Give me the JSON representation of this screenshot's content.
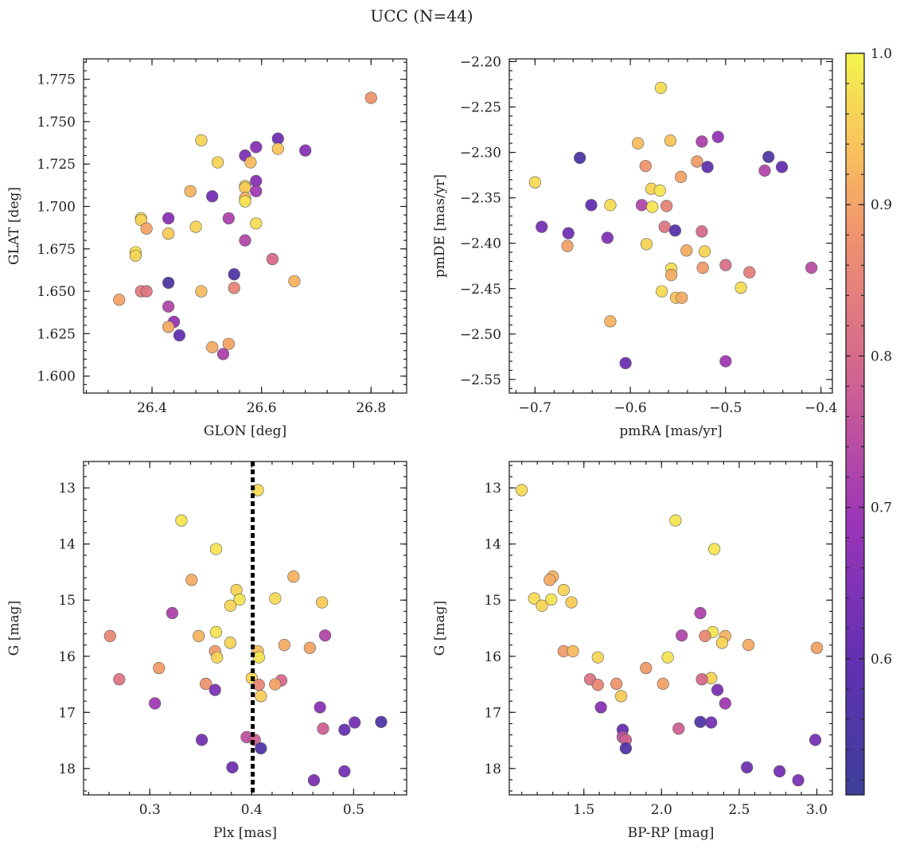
{
  "title": "UCC (N=44)",
  "colorbar": {
    "ticks": [
      0.6,
      0.7,
      0.8,
      0.9,
      1.0
    ],
    "tick_labels": [
      "0.6",
      "0.7",
      "0.8",
      "0.9",
      "1.0"
    ],
    "range": [
      0.51,
      1.0
    ],
    "colormap": "plasma"
  },
  "chart_data": [
    {
      "type": "scatter",
      "id": "glon-glat",
      "xlabel": "GLON [deg]",
      "ylabel": "GLAT [deg]",
      "xlim": [
        26.275,
        26.865
      ],
      "ylim": [
        1.59,
        1.787
      ],
      "x_invert": false,
      "y_invert": false,
      "grid": false,
      "xticks": [
        26.4,
        26.6,
        26.8
      ],
      "xtick_labels": [
        "26.4",
        "26.6",
        "26.8"
      ],
      "yticks": [
        1.6,
        1.625,
        1.65,
        1.675,
        1.7,
        1.725,
        1.75,
        1.775
      ],
      "ytick_labels": [
        "1.600",
        "1.625",
        "1.650",
        "1.675",
        "1.700",
        "1.725",
        "1.750",
        "1.775"
      ],
      "vline": null,
      "points": [
        {
          "x": 26.8,
          "y": 1.764,
          "c": 0.88
        },
        {
          "x": 26.49,
          "y": 1.739,
          "c": 0.96
        },
        {
          "x": 26.63,
          "y": 1.74,
          "c": 0.62
        },
        {
          "x": 26.59,
          "y": 1.735,
          "c": 0.66
        },
        {
          "x": 26.63,
          "y": 1.734,
          "c": 0.94
        },
        {
          "x": 26.68,
          "y": 1.733,
          "c": 0.66
        },
        {
          "x": 26.57,
          "y": 1.73,
          "c": 0.64
        },
        {
          "x": 26.52,
          "y": 1.726,
          "c": 0.96
        },
        {
          "x": 26.58,
          "y": 1.726,
          "c": 0.93
        },
        {
          "x": 26.59,
          "y": 1.715,
          "c": 0.66
        },
        {
          "x": 26.57,
          "y": 1.712,
          "c": 0.97
        },
        {
          "x": 26.57,
          "y": 1.711,
          "c": 0.95
        },
        {
          "x": 26.47,
          "y": 1.709,
          "c": 0.92
        },
        {
          "x": 26.59,
          "y": 1.709,
          "c": 0.7
        },
        {
          "x": 26.51,
          "y": 1.706,
          "c": 0.63
        },
        {
          "x": 26.57,
          "y": 1.705,
          "c": 0.92
        },
        {
          "x": 26.57,
          "y": 1.703,
          "c": 0.98
        },
        {
          "x": 26.38,
          "y": 1.693,
          "c": 0.98
        },
        {
          "x": 26.38,
          "y": 1.692,
          "c": 0.96
        },
        {
          "x": 26.43,
          "y": 1.693,
          "c": 0.66
        },
        {
          "x": 26.54,
          "y": 1.693,
          "c": 0.72
        },
        {
          "x": 26.59,
          "y": 1.69,
          "c": 0.97
        },
        {
          "x": 26.48,
          "y": 1.688,
          "c": 0.96
        },
        {
          "x": 26.39,
          "y": 1.687,
          "c": 0.9
        },
        {
          "x": 26.43,
          "y": 1.684,
          "c": 0.95
        },
        {
          "x": 26.57,
          "y": 1.68,
          "c": 0.73
        },
        {
          "x": 26.37,
          "y": 1.673,
          "c": 0.98
        },
        {
          "x": 26.37,
          "y": 1.671,
          "c": 0.96
        },
        {
          "x": 26.62,
          "y": 1.669,
          "c": 0.8
        },
        {
          "x": 26.55,
          "y": 1.66,
          "c": 0.56
        },
        {
          "x": 26.66,
          "y": 1.656,
          "c": 0.92
        },
        {
          "x": 26.43,
          "y": 1.655,
          "c": 0.55
        },
        {
          "x": 26.55,
          "y": 1.652,
          "c": 0.85
        },
        {
          "x": 26.38,
          "y": 1.65,
          "c": 0.84
        },
        {
          "x": 26.39,
          "y": 1.65,
          "c": 0.82
        },
        {
          "x": 26.49,
          "y": 1.65,
          "c": 0.93
        },
        {
          "x": 26.34,
          "y": 1.645,
          "c": 0.9
        },
        {
          "x": 26.43,
          "y": 1.641,
          "c": 0.73
        },
        {
          "x": 26.44,
          "y": 1.632,
          "c": 0.68
        },
        {
          "x": 26.43,
          "y": 1.629,
          "c": 0.91
        },
        {
          "x": 26.45,
          "y": 1.624,
          "c": 0.6
        },
        {
          "x": 26.54,
          "y": 1.619,
          "c": 0.9
        },
        {
          "x": 26.51,
          "y": 1.617,
          "c": 0.91
        },
        {
          "x": 26.53,
          "y": 1.613,
          "c": 0.72
        }
      ]
    },
    {
      "type": "scatter",
      "id": "pmra-pmde",
      "xlabel": "pmRA [mas/yr]",
      "ylabel": "pmDE [mas/yr]",
      "xlim": [
        -0.727,
        -0.388
      ],
      "ylim": [
        -2.565,
        -2.197
      ],
      "x_invert": false,
      "y_invert": false,
      "grid": false,
      "xticks": [
        -0.7,
        -0.6,
        -0.5,
        -0.4
      ],
      "xtick_labels": [
        "−0.7",
        "−0.6",
        "−0.5",
        "−0.4"
      ],
      "yticks": [
        -2.55,
        -2.5,
        -2.45,
        -2.4,
        -2.35,
        -2.3,
        -2.25,
        -2.2
      ],
      "ytick_labels": [
        "−2.55",
        "−2.50",
        "−2.45",
        "−2.40",
        "−2.35",
        "−2.30",
        "−2.25",
        "−2.20"
      ],
      "vline": null,
      "points": [
        {
          "x": -0.568,
          "y": -2.229,
          "c": 0.97
        },
        {
          "x": -0.592,
          "y": -2.29,
          "c": 0.93
        },
        {
          "x": -0.558,
          "y": -2.287,
          "c": 0.94
        },
        {
          "x": -0.525,
          "y": -2.288,
          "c": 0.72
        },
        {
          "x": -0.508,
          "y": -2.283,
          "c": 0.68
        },
        {
          "x": -0.653,
          "y": -2.306,
          "c": 0.55
        },
        {
          "x": -0.455,
          "y": -2.305,
          "c": 0.55
        },
        {
          "x": -0.53,
          "y": -2.31,
          "c": 0.89
        },
        {
          "x": -0.584,
          "y": -2.315,
          "c": 0.88
        },
        {
          "x": -0.519,
          "y": -2.316,
          "c": 0.6
        },
        {
          "x": -0.441,
          "y": -2.316,
          "c": 0.6
        },
        {
          "x": -0.459,
          "y": -2.32,
          "c": 0.73
        },
        {
          "x": -0.547,
          "y": -2.327,
          "c": 0.9
        },
        {
          "x": -0.7,
          "y": -2.333,
          "c": 0.97
        },
        {
          "x": -0.578,
          "y": -2.34,
          "c": 0.96
        },
        {
          "x": -0.569,
          "y": -2.342,
          "c": 0.98
        },
        {
          "x": -0.641,
          "y": -2.358,
          "c": 0.6
        },
        {
          "x": -0.621,
          "y": -2.358,
          "c": 0.97
        },
        {
          "x": -0.588,
          "y": -2.358,
          "c": 0.73
        },
        {
          "x": -0.577,
          "y": -2.36,
          "c": 0.98
        },
        {
          "x": -0.562,
          "y": -2.359,
          "c": 0.85
        },
        {
          "x": -0.693,
          "y": -2.382,
          "c": 0.63
        },
        {
          "x": -0.564,
          "y": -2.382,
          "c": 0.82
        },
        {
          "x": -0.553,
          "y": -2.386,
          "c": 0.58
        },
        {
          "x": -0.525,
          "y": -2.387,
          "c": 0.8
        },
        {
          "x": -0.665,
          "y": -2.389,
          "c": 0.62
        },
        {
          "x": -0.624,
          "y": -2.394,
          "c": 0.65
        },
        {
          "x": -0.583,
          "y": -2.401,
          "c": 0.96
        },
        {
          "x": -0.666,
          "y": -2.403,
          "c": 0.9
        },
        {
          "x": -0.541,
          "y": -2.408,
          "c": 0.91
        },
        {
          "x": -0.522,
          "y": -2.409,
          "c": 0.96
        },
        {
          "x": -0.5,
          "y": -2.424,
          "c": 0.81
        },
        {
          "x": -0.41,
          "y": -2.427,
          "c": 0.74
        },
        {
          "x": -0.557,
          "y": -2.428,
          "c": 0.97
        },
        {
          "x": -0.524,
          "y": -2.427,
          "c": 0.89
        },
        {
          "x": -0.475,
          "y": -2.432,
          "c": 0.84
        },
        {
          "x": -0.557,
          "y": -2.435,
          "c": 0.91
        },
        {
          "x": -0.484,
          "y": -2.449,
          "c": 0.97
        },
        {
          "x": -0.567,
          "y": -2.453,
          "c": 0.97
        },
        {
          "x": -0.552,
          "y": -2.46,
          "c": 0.94
        },
        {
          "x": -0.546,
          "y": -2.46,
          "c": 0.91
        },
        {
          "x": -0.621,
          "y": -2.486,
          "c": 0.92
        },
        {
          "x": -0.5,
          "y": -2.53,
          "c": 0.7
        },
        {
          "x": -0.605,
          "y": -2.532,
          "c": 0.62
        }
      ]
    },
    {
      "type": "scatter",
      "id": "plx-g",
      "xlabel": "Plx [mas]",
      "ylabel": "G [mag]",
      "xlim": [
        0.235,
        0.552
      ],
      "ylim": [
        18.47,
        12.53
      ],
      "x_invert": false,
      "y_invert": true,
      "grid": false,
      "xticks": [
        0.3,
        0.4,
        0.5
      ],
      "xtick_labels": [
        "0.3",
        "0.4",
        "0.5"
      ],
      "yticks": [
        13,
        14,
        15,
        16,
        17,
        18
      ],
      "ytick_labels": [
        "13",
        "14",
        "15",
        "16",
        "17",
        "18"
      ],
      "vline": 0.401,
      "points": [
        {
          "x": 0.406,
          "y": 13.04,
          "c": 0.97
        },
        {
          "x": 0.331,
          "y": 13.58,
          "c": 0.98
        },
        {
          "x": 0.365,
          "y": 14.09,
          "c": 0.98
        },
        {
          "x": 0.441,
          "y": 14.58,
          "c": 0.92
        },
        {
          "x": 0.341,
          "y": 14.64,
          "c": 0.91
        },
        {
          "x": 0.385,
          "y": 14.82,
          "c": 0.96
        },
        {
          "x": 0.423,
          "y": 14.97,
          "c": 0.97
        },
        {
          "x": 0.388,
          "y": 14.99,
          "c": 0.98
        },
        {
          "x": 0.469,
          "y": 15.04,
          "c": 0.95
        },
        {
          "x": 0.379,
          "y": 15.1,
          "c": 0.96
        },
        {
          "x": 0.322,
          "y": 15.23,
          "c": 0.72
        },
        {
          "x": 0.365,
          "y": 15.57,
          "c": 0.98
        },
        {
          "x": 0.472,
          "y": 15.63,
          "c": 0.73
        },
        {
          "x": 0.261,
          "y": 15.64,
          "c": 0.86
        },
        {
          "x": 0.348,
          "y": 15.64,
          "c": 0.92
        },
        {
          "x": 0.379,
          "y": 15.76,
          "c": 0.96
        },
        {
          "x": 0.432,
          "y": 15.8,
          "c": 0.91
        },
        {
          "x": 0.457,
          "y": 15.85,
          "c": 0.9
        },
        {
          "x": 0.364,
          "y": 15.91,
          "c": 0.89
        },
        {
          "x": 0.406,
          "y": 15.91,
          "c": 0.93
        },
        {
          "x": 0.366,
          "y": 16.02,
          "c": 0.96
        },
        {
          "x": 0.407,
          "y": 16.02,
          "c": 0.98
        },
        {
          "x": 0.309,
          "y": 16.21,
          "c": 0.89
        },
        {
          "x": 0.4,
          "y": 16.39,
          "c": 0.96
        },
        {
          "x": 0.27,
          "y": 16.41,
          "c": 0.82
        },
        {
          "x": 0.429,
          "y": 16.43,
          "c": 0.8
        },
        {
          "x": 0.355,
          "y": 16.49,
          "c": 0.88
        },
        {
          "x": 0.407,
          "y": 16.51,
          "c": 0.86
        },
        {
          "x": 0.423,
          "y": 16.5,
          "c": 0.9
        },
        {
          "x": 0.364,
          "y": 16.6,
          "c": 0.64
        },
        {
          "x": 0.409,
          "y": 16.71,
          "c": 0.95
        },
        {
          "x": 0.305,
          "y": 16.84,
          "c": 0.7
        },
        {
          "x": 0.467,
          "y": 16.91,
          "c": 0.66
        },
        {
          "x": 0.501,
          "y": 17.18,
          "c": 0.63
        },
        {
          "x": 0.527,
          "y": 17.17,
          "c": 0.56
        },
        {
          "x": 0.47,
          "y": 17.29,
          "c": 0.78
        },
        {
          "x": 0.491,
          "y": 17.31,
          "c": 0.61
        },
        {
          "x": 0.395,
          "y": 17.44,
          "c": 0.75
        },
        {
          "x": 0.403,
          "y": 17.49,
          "c": 0.78
        },
        {
          "x": 0.351,
          "y": 17.49,
          "c": 0.63
        },
        {
          "x": 0.409,
          "y": 17.64,
          "c": 0.56
        },
        {
          "x": 0.381,
          "y": 17.98,
          "c": 0.62
        },
        {
          "x": 0.491,
          "y": 18.05,
          "c": 0.63
        },
        {
          "x": 0.461,
          "y": 18.21,
          "c": 0.64
        }
      ]
    },
    {
      "type": "scatter",
      "id": "bprp-g",
      "xlabel": "BP-RP [mag]",
      "ylabel": "G [mag]",
      "xlim": [
        1.02,
        3.1
      ],
      "ylim": [
        18.47,
        12.53
      ],
      "x_invert": false,
      "y_invert": true,
      "grid": false,
      "xticks": [
        1.5,
        2.0,
        2.5,
        3.0
      ],
      "xtick_labels": [
        "1.5",
        "2.0",
        "2.5",
        "3.0"
      ],
      "yticks": [
        13,
        14,
        15,
        16,
        17,
        18
      ],
      "ytick_labels": [
        "13",
        "14",
        "15",
        "16",
        "17",
        "18"
      ],
      "vline": null,
      "points": [
        {
          "x": 1.1,
          "y": 13.04,
          "c": 0.97
        },
        {
          "x": 2.09,
          "y": 13.58,
          "c": 0.98
        },
        {
          "x": 2.34,
          "y": 14.09,
          "c": 0.98
        },
        {
          "x": 1.3,
          "y": 14.58,
          "c": 0.92
        },
        {
          "x": 1.28,
          "y": 14.64,
          "c": 0.91
        },
        {
          "x": 1.37,
          "y": 14.82,
          "c": 0.96
        },
        {
          "x": 1.18,
          "y": 14.97,
          "c": 0.97
        },
        {
          "x": 1.29,
          "y": 14.99,
          "c": 0.98
        },
        {
          "x": 1.42,
          "y": 15.04,
          "c": 0.95
        },
        {
          "x": 1.23,
          "y": 15.1,
          "c": 0.96
        },
        {
          "x": 2.25,
          "y": 15.23,
          "c": 0.72
        },
        {
          "x": 2.33,
          "y": 15.57,
          "c": 0.98
        },
        {
          "x": 2.13,
          "y": 15.63,
          "c": 0.73
        },
        {
          "x": 2.28,
          "y": 15.64,
          "c": 0.86
        },
        {
          "x": 2.41,
          "y": 15.64,
          "c": 0.92
        },
        {
          "x": 2.39,
          "y": 15.76,
          "c": 0.96
        },
        {
          "x": 2.56,
          "y": 15.8,
          "c": 0.91
        },
        {
          "x": 3.0,
          "y": 15.85,
          "c": 0.9
        },
        {
          "x": 1.37,
          "y": 15.91,
          "c": 0.89
        },
        {
          "x": 1.43,
          "y": 15.91,
          "c": 0.93
        },
        {
          "x": 1.59,
          "y": 16.02,
          "c": 0.96
        },
        {
          "x": 2.04,
          "y": 16.02,
          "c": 0.98
        },
        {
          "x": 1.9,
          "y": 16.21,
          "c": 0.89
        },
        {
          "x": 2.32,
          "y": 16.39,
          "c": 0.96
        },
        {
          "x": 1.54,
          "y": 16.41,
          "c": 0.82
        },
        {
          "x": 2.26,
          "y": 16.41,
          "c": 0.8
        },
        {
          "x": 1.71,
          "y": 16.49,
          "c": 0.88
        },
        {
          "x": 1.59,
          "y": 16.51,
          "c": 0.86
        },
        {
          "x": 2.01,
          "y": 16.49,
          "c": 0.9
        },
        {
          "x": 2.36,
          "y": 16.6,
          "c": 0.64
        },
        {
          "x": 1.74,
          "y": 16.71,
          "c": 0.95
        },
        {
          "x": 2.41,
          "y": 16.84,
          "c": 0.7
        },
        {
          "x": 1.61,
          "y": 16.91,
          "c": 0.66
        },
        {
          "x": 2.32,
          "y": 17.18,
          "c": 0.63
        },
        {
          "x": 2.25,
          "y": 17.17,
          "c": 0.56
        },
        {
          "x": 2.11,
          "y": 17.29,
          "c": 0.78
        },
        {
          "x": 1.75,
          "y": 17.31,
          "c": 0.61
        },
        {
          "x": 1.75,
          "y": 17.44,
          "c": 0.75
        },
        {
          "x": 1.77,
          "y": 17.49,
          "c": 0.78
        },
        {
          "x": 2.99,
          "y": 17.49,
          "c": 0.63
        },
        {
          "x": 1.77,
          "y": 17.64,
          "c": 0.56
        },
        {
          "x": 2.55,
          "y": 17.98,
          "c": 0.62
        },
        {
          "x": 2.76,
          "y": 18.05,
          "c": 0.63
        },
        {
          "x": 2.88,
          "y": 18.21,
          "c": 0.64
        }
      ]
    }
  ]
}
